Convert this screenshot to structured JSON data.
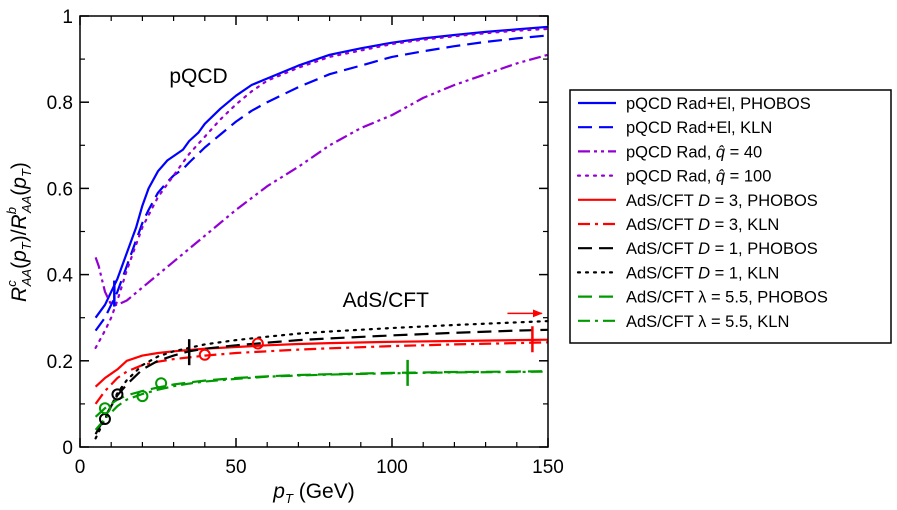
{
  "chart_data": {
    "type": "line",
    "title": "",
    "xlabel": "p_T (GeV)",
    "ylabel": "R^c_AA(p_T)/R^b_AA(p_T)",
    "xlim": [
      0,
      150
    ],
    "ylim": [
      0,
      1
    ],
    "x_ticks": [
      "0",
      "50",
      "100",
      "150"
    ],
    "y_ticks": [
      "0",
      "0.2",
      "0.4",
      "0.6",
      "0.8",
      "1"
    ],
    "grid": false,
    "legend_position": "right-outside",
    "annotations": [
      {
        "text": "pQCD",
        "x": 38,
        "y": 0.845
      },
      {
        "text": "AdS/CFT",
        "x": 98,
        "y": 0.325
      }
    ],
    "arrow": {
      "from": [
        137,
        0.31
      ],
      "to": [
        148,
        0.31
      ],
      "color": "#ff0000"
    },
    "series": [
      {
        "name": "pQCD Rad+El, PHOBOS",
        "label_parts": [
          "pQCD Rad+El, PHOBOS"
        ],
        "color": "#0000ff",
        "style": "solid",
        "x": [
          5,
          8,
          10,
          12,
          15,
          18,
          20,
          22,
          25,
          28,
          30,
          33,
          35,
          38,
          40,
          45,
          50,
          55,
          60,
          70,
          80,
          90,
          100,
          110,
          120,
          130,
          140,
          150
        ],
        "y": [
          0.3,
          0.33,
          0.36,
          0.39,
          0.45,
          0.51,
          0.56,
          0.6,
          0.64,
          0.665,
          0.675,
          0.69,
          0.71,
          0.73,
          0.75,
          0.785,
          0.815,
          0.84,
          0.855,
          0.885,
          0.91,
          0.925,
          0.938,
          0.948,
          0.956,
          0.963,
          0.969,
          0.975
        ]
      },
      {
        "name": "pQCD Rad+El, KLN",
        "label_parts": [
          "pQCD Rad+El, KLN"
        ],
        "color": "#0000ff",
        "style": "dash",
        "x": [
          5,
          8,
          10,
          12,
          15,
          18,
          20,
          22,
          25,
          28,
          30,
          33,
          35,
          40,
          45,
          50,
          55,
          60,
          70,
          80,
          90,
          100,
          110,
          120,
          130,
          140,
          150
        ],
        "y": [
          0.27,
          0.3,
          0.33,
          0.36,
          0.42,
          0.48,
          0.52,
          0.55,
          0.59,
          0.615,
          0.63,
          0.645,
          0.66,
          0.695,
          0.725,
          0.755,
          0.78,
          0.8,
          0.835,
          0.865,
          0.885,
          0.905,
          0.918,
          0.93,
          0.94,
          0.948,
          0.955
        ]
      },
      {
        "name": "pQCD Rad, q̂ = 40",
        "label_parts": [
          "pQCD Rad, ",
          "q̂",
          " = 40"
        ],
        "color": "#9400d3",
        "style": "dashdotdot",
        "x": [
          5,
          6,
          7,
          8,
          10,
          12,
          15,
          20,
          25,
          30,
          35,
          40,
          50,
          60,
          70,
          80,
          90,
          100,
          110,
          120,
          130,
          140,
          150
        ],
        "y": [
          0.44,
          0.42,
          0.39,
          0.36,
          0.33,
          0.33,
          0.34,
          0.37,
          0.4,
          0.43,
          0.46,
          0.49,
          0.55,
          0.605,
          0.65,
          0.7,
          0.74,
          0.77,
          0.81,
          0.84,
          0.865,
          0.89,
          0.91
        ]
      },
      {
        "name": "pQCD Rad, q̂ = 100",
        "label_parts": [
          "pQCD Rad, ",
          "q̂",
          " = 100"
        ],
        "color": "#9400d3",
        "style": "dot",
        "x": [
          5,
          8,
          10,
          12,
          15,
          18,
          20,
          25,
          30,
          35,
          40,
          45,
          50,
          55,
          60,
          70,
          80,
          90,
          100,
          110,
          120,
          130,
          140,
          150
        ],
        "y": [
          0.23,
          0.27,
          0.3,
          0.34,
          0.41,
          0.47,
          0.51,
          0.58,
          0.63,
          0.68,
          0.72,
          0.76,
          0.795,
          0.825,
          0.85,
          0.88,
          0.905,
          0.92,
          0.935,
          0.945,
          0.953,
          0.96,
          0.966,
          0.97
        ]
      },
      {
        "name": "AdS/CFT D = 3, PHOBOS",
        "label_parts": [
          "AdS/CFT ",
          "D",
          " = 3, PHOBOS"
        ],
        "color": "#ff0000",
        "style": "solid",
        "x": [
          5,
          8,
          10,
          12,
          15,
          20,
          25,
          30,
          35,
          40,
          50,
          60,
          70,
          80,
          100,
          120,
          140,
          150
        ],
        "y": [
          0.14,
          0.16,
          0.17,
          0.18,
          0.2,
          0.212,
          0.218,
          0.222,
          0.225,
          0.228,
          0.232,
          0.236,
          0.239,
          0.241,
          0.244,
          0.246,
          0.248,
          0.249
        ]
      },
      {
        "name": "AdS/CFT D = 3, KLN",
        "label_parts": [
          "AdS/CFT ",
          "D",
          " = 3, KLN"
        ],
        "color": "#ff0000",
        "style": "dashdot",
        "x": [
          5,
          8,
          10,
          12,
          15,
          20,
          25,
          30,
          35,
          40,
          50,
          60,
          70,
          80,
          100,
          120,
          140,
          150
        ],
        "y": [
          0.1,
          0.13,
          0.145,
          0.16,
          0.175,
          0.19,
          0.198,
          0.204,
          0.208,
          0.212,
          0.218,
          0.222,
          0.226,
          0.229,
          0.234,
          0.238,
          0.241,
          0.243
        ]
      },
      {
        "name": "AdS/CFT D = 1, PHOBOS",
        "label_parts": [
          "AdS/CFT ",
          "D",
          " = 1, PHOBOS"
        ],
        "color": "#000000",
        "style": "dash",
        "x": [
          5,
          8,
          10,
          12,
          15,
          20,
          25,
          30,
          35,
          40,
          50,
          60,
          70,
          80,
          100,
          120,
          140,
          150
        ],
        "y": [
          0.03,
          0.07,
          0.095,
          0.12,
          0.145,
          0.18,
          0.2,
          0.212,
          0.222,
          0.228,
          0.236,
          0.242,
          0.248,
          0.252,
          0.259,
          0.265,
          0.27,
          0.272
        ]
      },
      {
        "name": "AdS/CFT D = 1, KLN",
        "label_parts": [
          "AdS/CFT ",
          "D",
          " = 1, KLN"
        ],
        "color": "#000000",
        "style": "dot",
        "x": [
          5,
          8,
          10,
          12,
          15,
          20,
          25,
          30,
          35,
          40,
          50,
          60,
          70,
          80,
          100,
          120,
          140,
          150
        ],
        "y": [
          0.02,
          0.065,
          0.095,
          0.125,
          0.155,
          0.19,
          0.21,
          0.222,
          0.23,
          0.238,
          0.248,
          0.256,
          0.263,
          0.268,
          0.276,
          0.283,
          0.289,
          0.292
        ]
      },
      {
        "name": "AdS/CFT λ = 5.5, PHOBOS",
        "label_parts": [
          "AdS/CFT λ = 5.5, PHOBOS"
        ],
        "color": "#009900",
        "style": "dash",
        "x": [
          5,
          8,
          10,
          12,
          15,
          20,
          25,
          30,
          35,
          40,
          50,
          60,
          70,
          80,
          100,
          120,
          140,
          150
        ],
        "y": [
          0.07,
          0.09,
          0.1,
          0.11,
          0.12,
          0.13,
          0.138,
          0.145,
          0.15,
          0.154,
          0.16,
          0.164,
          0.167,
          0.169,
          0.172,
          0.174,
          0.175,
          0.176
        ]
      },
      {
        "name": "AdS/CFT λ = 5.5, KLN",
        "label_parts": [
          "AdS/CFT λ = 5.5, KLN"
        ],
        "color": "#009900",
        "style": "dashdot",
        "x": [
          5,
          8,
          10,
          12,
          15,
          20,
          25,
          30,
          35,
          40,
          50,
          60,
          70,
          80,
          100,
          120,
          140,
          150
        ],
        "y": [
          0.04,
          0.065,
          0.08,
          0.095,
          0.11,
          0.123,
          0.133,
          0.141,
          0.147,
          0.152,
          0.158,
          0.163,
          0.166,
          0.168,
          0.171,
          0.173,
          0.174,
          0.175
        ]
      }
    ],
    "markers": [
      {
        "kind": "vbar",
        "x": 11,
        "y": 0.356,
        "color": "#0000ff"
      },
      {
        "kind": "vbar",
        "x": 35,
        "y": 0.22,
        "color": "#000000"
      },
      {
        "kind": "vbar",
        "x": 105,
        "y": 0.172,
        "color": "#009900"
      },
      {
        "kind": "vbar",
        "x": 145,
        "y": 0.25,
        "color": "#ff0000"
      },
      {
        "kind": "circle",
        "x": 8,
        "y": 0.065,
        "color": "#000000"
      },
      {
        "kind": "circle",
        "x": 12,
        "y": 0.122,
        "color": "#000000"
      },
      {
        "kind": "circle",
        "x": 20,
        "y": 0.118,
        "color": "#009900"
      },
      {
        "kind": "circle",
        "x": 26,
        "y": 0.148,
        "color": "#009900"
      },
      {
        "kind": "circle",
        "x": 8,
        "y": 0.09,
        "color": "#009900"
      },
      {
        "kind": "circle",
        "x": 40,
        "y": 0.214,
        "color": "#ff0000"
      },
      {
        "kind": "circle",
        "x": 57,
        "y": 0.24,
        "color": "#ff0000"
      }
    ]
  }
}
